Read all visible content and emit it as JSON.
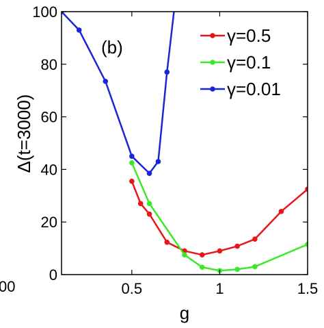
{
  "chart_data": {
    "type": "line",
    "xlabel": "g",
    "ylabel": "Δ(t=3000)",
    "annotation": "(b)",
    "clipped_left_tick": "00",
    "xlim": [
      0.1,
      1.5
    ],
    "ylim": [
      0,
      100
    ],
    "xticks": [
      0.5,
      1,
      1.5
    ],
    "xtick_labels": [
      "0.5",
      "1",
      "1.5"
    ],
    "yticks": [
      0,
      20,
      40,
      60,
      80,
      100
    ],
    "ytick_labels": [
      "0",
      "20",
      "40",
      "60",
      "80",
      "100"
    ],
    "grid": false,
    "legend_position": "top-right",
    "series": [
      {
        "name": "γ=0.5",
        "color": "#e8161b",
        "points": [
          [
            0.5,
            35.5
          ],
          [
            0.55,
            27
          ],
          [
            0.6,
            23
          ],
          [
            0.7,
            12.3
          ],
          [
            0.8,
            9
          ],
          [
            0.9,
            7.5
          ],
          [
            1.0,
            9
          ],
          [
            1.1,
            10.8
          ],
          [
            1.2,
            13.5
          ],
          [
            1.35,
            24
          ],
          [
            1.5,
            32.5
          ]
        ]
      },
      {
        "name": "γ=0.1",
        "color": "#3ce82b",
        "points": [
          [
            0.5,
            42.5
          ],
          [
            0.6,
            27
          ],
          [
            0.8,
            7.5
          ],
          [
            0.9,
            2.8
          ],
          [
            1.0,
            1.5
          ],
          [
            1.1,
            2
          ],
          [
            1.2,
            3
          ],
          [
            1.5,
            11.5
          ]
        ]
      },
      {
        "name": "γ=0.01",
        "color": "#1a26d6",
        "points": [
          [
            0.1,
            100
          ],
          [
            0.2,
            93
          ],
          [
            0.35,
            73.5
          ],
          [
            0.5,
            45
          ],
          [
            0.6,
            38.5
          ],
          [
            0.65,
            43
          ],
          [
            0.7,
            77
          ],
          [
            0.75,
            106
          ]
        ]
      }
    ]
  }
}
